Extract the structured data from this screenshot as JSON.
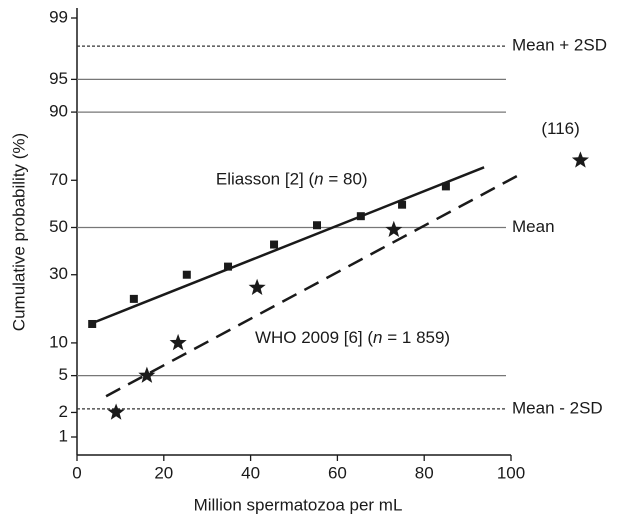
{
  "chart_data": {
    "type": "probability-plot",
    "xlabel": "Million spermatozoa per mL",
    "ylabel": "Cumulative probability (%)",
    "xlim": [
      0,
      100
    ],
    "xticks": [
      0,
      20,
      40,
      60,
      80,
      100
    ],
    "ylim": [
      1,
      99
    ],
    "yticks": [
      1,
      2,
      5,
      10,
      30,
      50,
      70,
      90,
      95,
      99
    ],
    "yscale": "probit",
    "reference_lines": [
      {
        "value": 97.8,
        "style": "dashed",
        "label": "Mean + 2SD"
      },
      {
        "value": 95,
        "style": "solid"
      },
      {
        "value": 90,
        "style": "solid"
      },
      {
        "value": 50,
        "style": "solid",
        "label": "Mean"
      },
      {
        "value": 5,
        "style": "solid"
      },
      {
        "value": 2.2,
        "style": "dashed",
        "label": "Mean - 2SD"
      }
    ],
    "series": [
      {
        "marker": "square",
        "color": "#1a1a1a",
        "x": [
          3.5,
          13.1,
          25.3,
          34.8,
          45.4,
          55.3,
          65.4,
          74.9,
          85
        ],
        "values": [
          14.2,
          21.4,
          30,
          33.2,
          42.5,
          51,
          55,
          60,
          67.6
        ]
      },
      {
        "marker": "star",
        "color": "#1a1a1a",
        "x": [
          9,
          16.1,
          23.3,
          41.5,
          73,
          116
        ],
        "values": [
          2,
          5,
          10,
          25.2,
          49,
          77.2
        ]
      }
    ],
    "fit_lines": [
      {
        "style": "solid",
        "color": "#1a1a1a",
        "x": [
          3,
          93.8
        ],
        "values": [
          14.2,
          74.8
        ]
      },
      {
        "style": "dashed",
        "color": "#1a1a1a",
        "x": [
          6.7,
          102.5
        ],
        "values": [
          3.05,
          72.6
        ]
      }
    ],
    "annotations": [
      {
        "parts": [
          "Eliasson [2] (",
          "n",
          " = 80)"
        ],
        "x": 32,
        "y": 70
      },
      {
        "parts": [
          "WHO 2009 [6] (",
          "n",
          " = 1 859)"
        ],
        "x": 41,
        "y": 10.8
      },
      {
        "parts": [
          "(116)"
        ],
        "x": 107,
        "y": 86
      }
    ]
  }
}
